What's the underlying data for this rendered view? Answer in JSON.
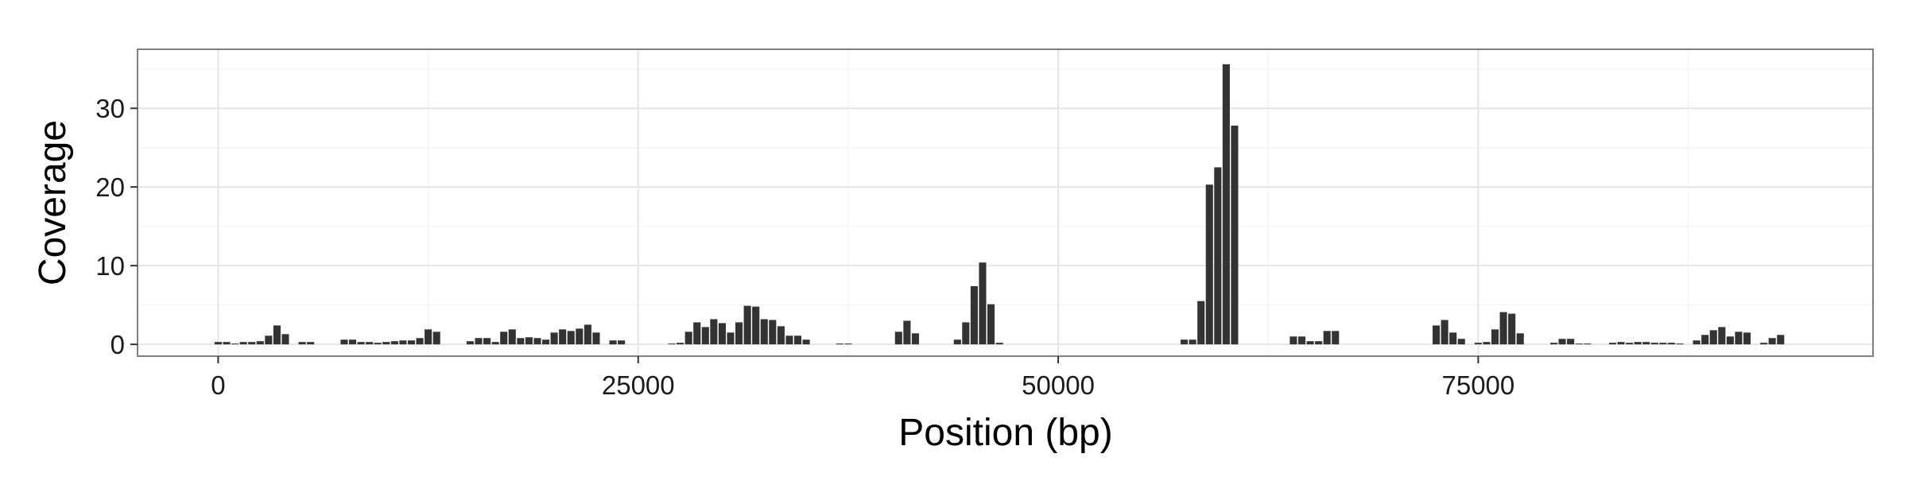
{
  "chart_data": {
    "type": "bar",
    "title": "",
    "xlabel": "Position (bp)",
    "ylabel": "Coverage",
    "xlim": [
      -4800,
      98500
    ],
    "ylim": [
      -1.5,
      37.5
    ],
    "x_ticks": [
      0,
      25000,
      50000,
      75000
    ],
    "y_ticks": [
      0,
      10,
      20,
      30
    ],
    "grid": true,
    "legend": "none",
    "bar_width": 430,
    "colors": {
      "bar": "#333333",
      "panel_background": "#ffffff",
      "panel_border": "#7f7f7f",
      "grid_major": "#e5e5e5",
      "grid_minor": "#f2f2f2",
      "text": "#1a1a1a"
    },
    "x": [
      0,
      500,
      1000,
      1500,
      2000,
      2500,
      3000,
      3500,
      4000,
      5000,
      5500,
      7500,
      8000,
      8500,
      9000,
      9500,
      10000,
      10500,
      11000,
      11500,
      12000,
      12500,
      13000,
      15000,
      15500,
      16000,
      16500,
      17000,
      17500,
      18000,
      18500,
      19000,
      19500,
      20000,
      20500,
      21000,
      21500,
      22000,
      22500,
      23500,
      24000,
      27000,
      27500,
      28000,
      28500,
      29000,
      29500,
      30000,
      30500,
      31000,
      31500,
      32000,
      32500,
      33000,
      33500,
      34000,
      34500,
      35000,
      37000,
      37500,
      40500,
      41000,
      41500,
      44000,
      44500,
      45000,
      45500,
      46000,
      46500,
      57500,
      58000,
      58500,
      59000,
      59500,
      60000,
      60500,
      64000,
      64500,
      65000,
      65500,
      66000,
      66500,
      72500,
      73000,
      73500,
      74000,
      75000,
      75500,
      76000,
      76500,
      77000,
      77500,
      79500,
      80000,
      80500,
      81000,
      81500,
      83000,
      83500,
      84000,
      84500,
      85000,
      85500,
      86000,
      86500,
      87000,
      88000,
      88500,
      89000,
      89500,
      90000,
      90500,
      91000,
      92000,
      92500,
      93000
    ],
    "values": [
      0.3,
      0.3,
      0.1,
      0.3,
      0.3,
      0.4,
      1.1,
      2.4,
      1.3,
      0.3,
      0.3,
      0.6,
      0.6,
      0.3,
      0.3,
      0.2,
      0.3,
      0.4,
      0.5,
      0.5,
      0.8,
      1.9,
      1.6,
      0.4,
      0.8,
      0.8,
      0.3,
      1.6,
      1.9,
      0.8,
      0.9,
      0.8,
      0.6,
      1.5,
      1.9,
      1.7,
      2.0,
      2.5,
      1.5,
      0.5,
      0.5,
      0.1,
      0.2,
      1.6,
      2.8,
      2.2,
      3.2,
      2.7,
      1.5,
      2.8,
      4.9,
      4.8,
      3.2,
      3.1,
      2.3,
      1.1,
      1.1,
      0.6,
      0.1,
      0.1,
      1.6,
      3.0,
      1.4,
      0.6,
      2.8,
      7.4,
      10.4,
      5.1,
      0.2,
      0.6,
      0.6,
      5.5,
      20.3,
      22.5,
      35.6,
      27.8,
      1.0,
      1.0,
      0.4,
      0.4,
      1.7,
      1.7,
      2.4,
      3.1,
      1.5,
      0.7,
      0.2,
      0.3,
      1.9,
      4.1,
      3.9,
      1.4,
      0.2,
      0.7,
      0.7,
      0.1,
      0.1,
      0.2,
      0.3,
      0.2,
      0.3,
      0.3,
      0.2,
      0.2,
      0.2,
      0.1,
      0.5,
      1.2,
      1.8,
      2.2,
      1.0,
      1.6,
      1.5,
      0.2,
      0.8,
      1.2
    ]
  }
}
